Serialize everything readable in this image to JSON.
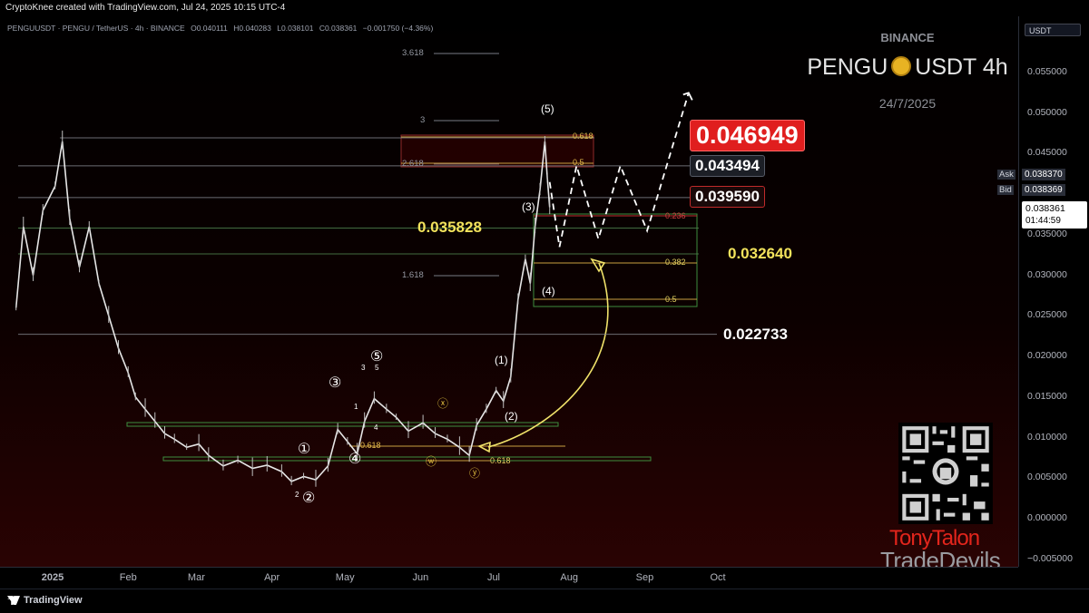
{
  "header": {
    "credit": "CryptoKnee created with TradingView.com, Jul 24, 2025 10:15 UTC-4"
  },
  "symbol_bar": {
    "symbol": "PENGUUSDT · PENGU / TetherUS · 4h · BINANCE",
    "open": "O0.040111",
    "high": "H0.040283",
    "low": "L0.038101",
    "close": "C0.038361",
    "change": "−0.001750 (−4.36%)"
  },
  "watermark": {
    "exchange": "BINANCE",
    "pair_left": "PENGU",
    "pair_right": "USDT 4h",
    "date": "24/7/2025"
  },
  "currency_button": "USDT",
  "ask_bid": {
    "ask_label": "Ask",
    "ask_value": "0.038370",
    "bid_label": "Bid",
    "bid_value": "0.038369",
    "last_value": "0.038361",
    "countdown": "01:44:59"
  },
  "price_labels": {
    "target_top": "0.046949",
    "resist_1": "0.043494",
    "resist_2": "0.039590",
    "support_yellow_left": "0.035828",
    "support_yellow_right": "0.032640",
    "support_white": "0.022733"
  },
  "fib_labels": {
    "ext_3618": "3.618",
    "ext_3": "3",
    "ext_2618": "2.618",
    "ext_1618": "1.618",
    "r_0618": "0.618",
    "r_05": "0.5",
    "r_0236": "0.236",
    "r_0382": "0.382",
    "r_05b": "0.5",
    "low_0618a": "0.618",
    "low_0618b": "0.618"
  },
  "wave_labels": {
    "w5": "(5)",
    "w3": "(3)",
    "w4": "(4)",
    "w1": "(1)",
    "w2": "(2)",
    "c1": "①",
    "c2": "②",
    "c3": "③",
    "c4": "④",
    "c5": "⑤",
    "cx": "ⓧ",
    "cw": "ⓦ",
    "cy": "ⓨ",
    "s3": "3",
    "s5": "5",
    "s1": "1",
    "s4": "4",
    "s2": "2"
  },
  "branding": {
    "line1": "TonyTalon",
    "line2": "TradeDevils"
  },
  "footer": {
    "logo_text": "TradingView"
  },
  "chart_data": {
    "type": "line",
    "title": "PENGU USDT 4h",
    "x_ticks": [
      "2025",
      "Feb",
      "Mar",
      "Apr",
      "May",
      "Jun",
      "Jul",
      "Aug",
      "Sep",
      "Oct"
    ],
    "y_ticks": [
      "0.055000",
      "0.050000",
      "0.045000",
      "0.040000",
      "0.035000",
      "0.030000",
      "0.025000",
      "0.020000",
      "0.015000",
      "0.010000",
      "0.005000",
      "0.000000",
      "−0.005000"
    ],
    "ylim": [
      -0.0055,
      0.0585
    ],
    "series": [
      {
        "values": [
          {
            "x": "2024-12-17",
            "y": 0.026
          },
          {
            "x": "2024-12-20",
            "y": 0.036
          },
          {
            "x": "2024-12-24",
            "y": 0.03
          },
          {
            "x": "2024-12-28",
            "y": 0.038
          },
          {
            "x": "2025-01-02",
            "y": 0.041
          },
          {
            "x": "2025-01-05",
            "y": 0.0465
          },
          {
            "x": "2025-01-08",
            "y": 0.037
          },
          {
            "x": "2025-01-12",
            "y": 0.031
          },
          {
            "x": "2025-01-16",
            "y": 0.036
          },
          {
            "x": "2025-01-20",
            "y": 0.029
          },
          {
            "x": "2025-01-24",
            "y": 0.025
          },
          {
            "x": "2025-01-28",
            "y": 0.021
          },
          {
            "x": "2025-02-01",
            "y": 0.018
          },
          {
            "x": "2025-02-04",
            "y": 0.015
          },
          {
            "x": "2025-02-08",
            "y": 0.0135
          },
          {
            "x": "2025-02-12",
            "y": 0.012
          },
          {
            "x": "2025-02-16",
            "y": 0.0105
          },
          {
            "x": "2025-02-20",
            "y": 0.0098
          },
          {
            "x": "2025-02-25",
            "y": 0.0088
          },
          {
            "x": "2025-03-02",
            "y": 0.0092
          },
          {
            "x": "2025-03-06",
            "y": 0.0078
          },
          {
            "x": "2025-03-12",
            "y": 0.0065
          },
          {
            "x": "2025-03-18",
            "y": 0.0072
          },
          {
            "x": "2025-03-24",
            "y": 0.0062
          },
          {
            "x": "2025-03-30",
            "y": 0.0066
          },
          {
            "x": "2025-04-05",
            "y": 0.0058
          },
          {
            "x": "2025-04-09",
            "y": 0.0046
          },
          {
            "x": "2025-04-14",
            "y": 0.0052
          },
          {
            "x": "2025-04-19",
            "y": 0.0048
          },
          {
            "x": "2025-04-24",
            "y": 0.0065
          },
          {
            "x": "2025-04-28",
            "y": 0.011
          },
          {
            "x": "2025-05-02",
            "y": 0.0095
          },
          {
            "x": "2025-05-06",
            "y": 0.008
          },
          {
            "x": "2025-05-09",
            "y": 0.012
          },
          {
            "x": "2025-05-13",
            "y": 0.0148
          },
          {
            "x": "2025-05-18",
            "y": 0.0135
          },
          {
            "x": "2025-05-22",
            "y": 0.0125
          },
          {
            "x": "2025-05-27",
            "y": 0.0108
          },
          {
            "x": "2025-06-02",
            "y": 0.0118
          },
          {
            "x": "2025-06-07",
            "y": 0.0105
          },
          {
            "x": "2025-06-12",
            "y": 0.0098
          },
          {
            "x": "2025-06-17",
            "y": 0.0088
          },
          {
            "x": "2025-06-21",
            "y": 0.0078
          },
          {
            "x": "2025-06-24",
            "y": 0.0115
          },
          {
            "x": "2025-06-28",
            "y": 0.0135
          },
          {
            "x": "2025-07-02",
            "y": 0.0158
          },
          {
            "x": "2025-07-05",
            "y": 0.0145
          },
          {
            "x": "2025-07-08",
            "y": 0.0175
          },
          {
            "x": "2025-07-11",
            "y": 0.027
          },
          {
            "x": "2025-07-14",
            "y": 0.032
          },
          {
            "x": "2025-07-16",
            "y": 0.029
          },
          {
            "x": "2025-07-18",
            "y": 0.036
          },
          {
            "x": "2025-07-20",
            "y": 0.0405
          },
          {
            "x": "2025-07-22",
            "y": 0.0465
          },
          {
            "x": "2025-07-23",
            "y": 0.042
          },
          {
            "x": "2025-07-24",
            "y": 0.0384
          }
        ]
      }
    ],
    "projection": {
      "values": [
        {
          "x": "2025-07-24",
          "y": 0.0415
        },
        {
          "x": "2025-07-28",
          "y": 0.0335
        },
        {
          "x": "2025-08-04",
          "y": 0.0435
        },
        {
          "x": "2025-08-13",
          "y": 0.0345
        },
        {
          "x": "2025-08-22",
          "y": 0.0435
        },
        {
          "x": "2025-09-02",
          "y": 0.0355
        },
        {
          "x": "2025-09-19",
          "y": 0.0525
        }
      ]
    },
    "horizontal_levels": [
      0.046949,
      0.043494,
      0.03959,
      0.035828,
      0.03264,
      0.022733
    ],
    "grid": false,
    "legend": "none"
  }
}
